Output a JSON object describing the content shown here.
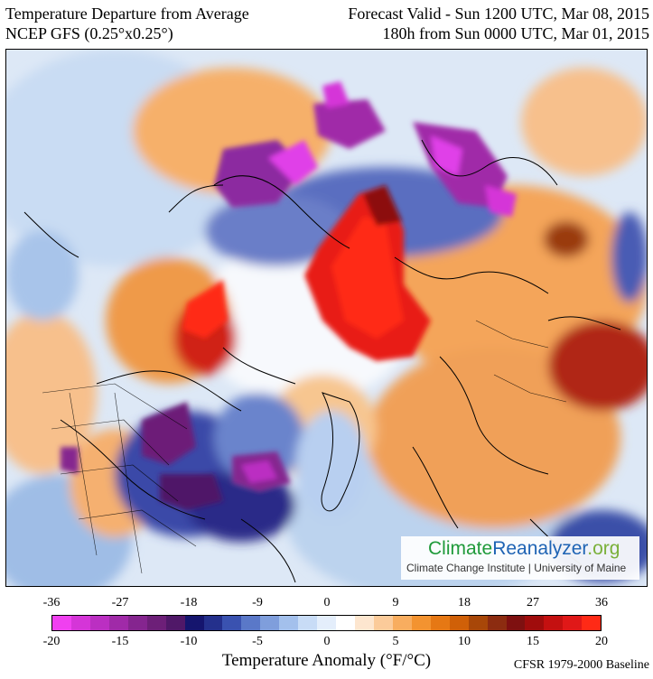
{
  "header": {
    "title": "Temperature Departure from Average",
    "model": "NCEP GFS (0.25°x0.25°)",
    "valid": "Forecast Valid - Sun 1200 UTC, Mar 08, 2015",
    "lead": "180h from Sun 0000 UTC, Mar 01, 2015"
  },
  "logo": {
    "climate": "Climate",
    "reanalyzer": "Reanalyzer",
    "org": ".org",
    "subtitle": "Climate Change Institute | University of Maine"
  },
  "legend": {
    "title": "Temperature Anomaly (°F/°C)",
    "fahrenheit_ticks": [
      "-36",
      "-27",
      "-18",
      "-9",
      "0",
      "9",
      "18",
      "27",
      "36"
    ],
    "celsius_ticks": [
      "-20",
      "-15",
      "-10",
      "-5",
      "0",
      "5",
      "10",
      "15",
      "20"
    ],
    "colors": [
      "#f040f0",
      "#d535d8",
      "#bb2fc2",
      "#a02aa8",
      "#85258f",
      "#6d1f78",
      "#501868",
      "#15156e",
      "#24308c",
      "#3a52b0",
      "#5a78c8",
      "#7f9edc",
      "#a3c0ec",
      "#c8dcf6",
      "#e4eefb",
      "#ffffff",
      "#fde6cf",
      "#fbcb9a",
      "#f8ad5f",
      "#f39330",
      "#e67814",
      "#d06008",
      "#a84708",
      "#8c2c10",
      "#7e1010",
      "#a00c0c",
      "#c41010",
      "#e01818",
      "#ff2a16"
    ],
    "baseline": "CFSR 1979-2000 Baseline"
  }
}
